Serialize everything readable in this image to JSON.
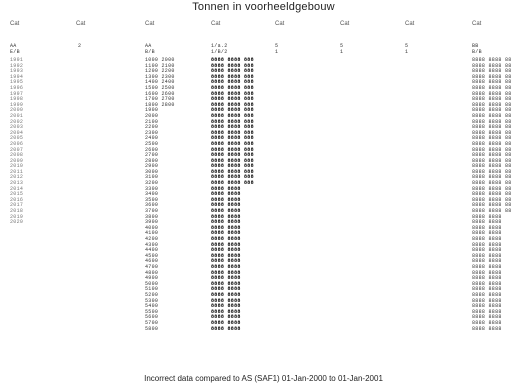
{
  "title": "Tonnen in voorheeldgebouw",
  "footer": "Incorrect data compared to AS (SAF1) 01-Jan-2000 to 01-Jan-2001",
  "headers": [
    "Cat",
    "Cat",
    "Cat",
    "Cat",
    "Cat",
    "Cat",
    "Cat",
    "Cat"
  ],
  "top_row": [
    "AA",
    "2",
    "AA",
    "1/a.2",
    "5",
    "5",
    "5",
    "BB"
  ],
  "top_row2": [
    "E/B",
    "",
    "B/B",
    "1/B/2",
    "1",
    "1",
    "1",
    "B/B"
  ],
  "col1": [
    "1991",
    "1992",
    "1993",
    "1994",
    "1995",
    "1996",
    "1997",
    "1998",
    "1999",
    "2000",
    "2001",
    "2002",
    "2003",
    "2004",
    "2005",
    "2006",
    "2007",
    "2008",
    "2009",
    "2010",
    "2011",
    "2012",
    "2013",
    "2014",
    "2015",
    "2016",
    "2017",
    "2018",
    "2019",
    "2020"
  ],
  "col2": [
    "",
    "",
    ""
  ],
  "col3": [
    "1000 2000",
    "1100 2100",
    "1200 2200",
    "1300 2300",
    "1400 2400",
    "1500 2500",
    "1600 2600",
    "1700 2700",
    "1800 2800",
    "1900",
    "2000",
    "2100",
    "2200",
    "2300",
    "2400",
    "2500",
    "2600",
    "2700",
    "2800",
    "2900",
    "3000",
    "3100",
    "3200",
    "3300",
    "3400",
    "3500",
    "3600",
    "3700",
    "3800",
    "3900",
    "4000",
    "4100",
    "4200",
    "4300",
    "4400",
    "4500",
    "4600",
    "4700",
    "4800",
    "4900",
    "5000",
    "5100",
    "5200",
    "5300",
    "5400",
    "5500",
    "5600",
    "5700",
    "5800"
  ],
  "col4": [
    "8888 8888 888",
    "8888 8888 888",
    "8888 8888 888",
    "8888 8888 888",
    "8888 8888 888",
    "8888 8888 888",
    "8888 8888 888",
    "8888 8888 888",
    "8888 8888 888",
    "8888 8888 888",
    "8888 8888 888",
    "8888 8888 888",
    "8888 8888 888",
    "8888 8888 888",
    "8888 8888 888",
    "8888 8888 888",
    "8888 8888 888",
    "8888 8888 888",
    "8888 8888 888",
    "8888 8888 888",
    "8888 8888 888",
    "8888 8888 888",
    "8888 8888 888",
    "8888 8888",
    "8888 8888",
    "8888 8888",
    "8888 8888",
    "8888 8888",
    "8888 8888",
    "8888 8888",
    "8888 8888",
    "8888 8888",
    "8888 8888",
    "8888 8888",
    "8888 8888",
    "8888 8888",
    "8888 8888",
    "8888 8888",
    "8888 8888",
    "8888 8888",
    "8888 8888",
    "8888 8888",
    "8888 8888",
    "8888 8888",
    "8888 8888",
    "8888 8888",
    "8888 8888",
    "8888 8888",
    "8888 8888"
  ],
  "col8": [
    "8888 8888 88",
    "8888 8888 88",
    "8888 8888 88",
    "8888 8888 88",
    "8888 8888 88",
    "8888 8888 88",
    "8888 8888 88",
    "8888 8888 88",
    "8888 8888 88",
    "8888 8888 88",
    "8888 8888 88",
    "8888 8888 88",
    "8888 8888 88",
    "8888 8888 88",
    "8888 8888 88",
    "8888 8888 88",
    "8888 8888 88",
    "8888 8888 88",
    "8888 8888 88",
    "8888 8888 88",
    "8888 8888 88",
    "8888 8888 88",
    "8888 8888 88",
    "8888 8888 88",
    "8888 8888 88",
    "8888 8888 88",
    "8888 8888 88",
    "8888 8888 88",
    "8888 8888",
    "8888 8888",
    "8888 8888",
    "8888 8888",
    "8888 8888",
    "8888 8888",
    "8888 8888",
    "8888 8888",
    "8888 8888",
    "8888 8888",
    "8888 8888",
    "8888 8888",
    "8888 8888",
    "8888 8888",
    "8888 8888",
    "8888 8888",
    "8888 8888",
    "8888 8888",
    "8888 8888",
    "8888 8888",
    "8888 8888"
  ]
}
